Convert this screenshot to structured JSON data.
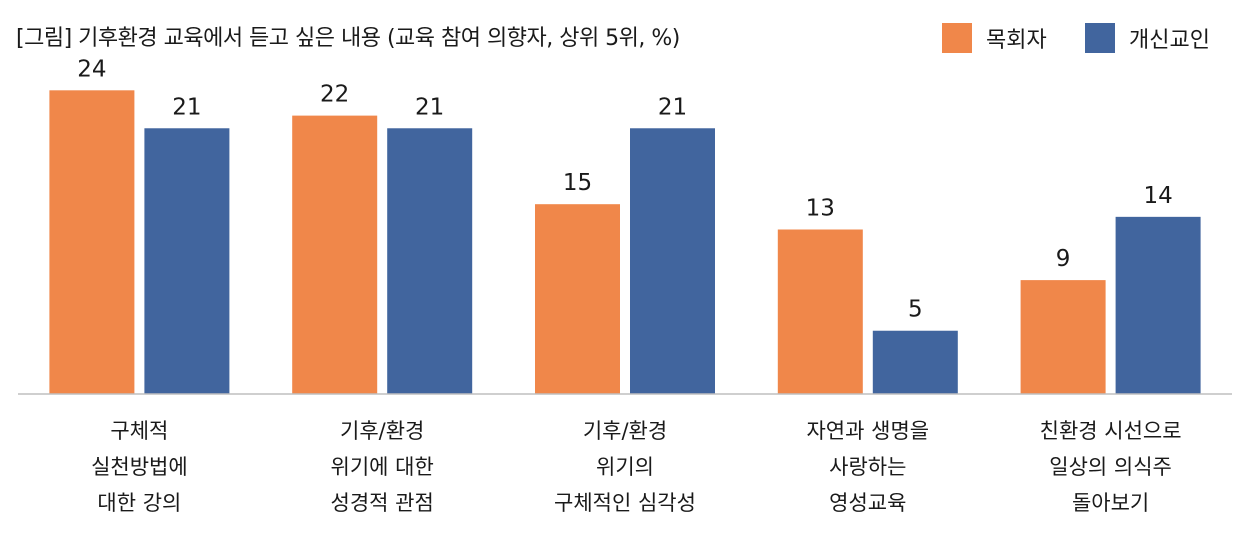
{
  "chart_data": {
    "type": "bar",
    "title": "[그림] 기후환경 교육에서 듣고 싶은 내용 (교육 참여 의향자, 상위 5위, %)",
    "categories": [
      [
        "구체적",
        "실천방법에",
        "대한 강의"
      ],
      [
        "기후/환경",
        "위기에 대한",
        "성경적 관점"
      ],
      [
        "기후/환경",
        "위기의",
        "구체적인 심각성"
      ],
      [
        "자연과 생명을",
        "사랑하는",
        "영성교육"
      ],
      [
        "친환경 시선으로",
        "일상의 의식주",
        "돌아보기"
      ]
    ],
    "series": [
      {
        "name": "목회자",
        "values": [
          24,
          22,
          15,
          13,
          9
        ],
        "color": "#F0874A"
      },
      {
        "name": "개신교인",
        "values": [
          21,
          21,
          21,
          5,
          14
        ],
        "color": "#41659E"
      }
    ],
    "ylim": [
      0,
      26
    ],
    "grid": false,
    "legend_position": "top-right"
  }
}
